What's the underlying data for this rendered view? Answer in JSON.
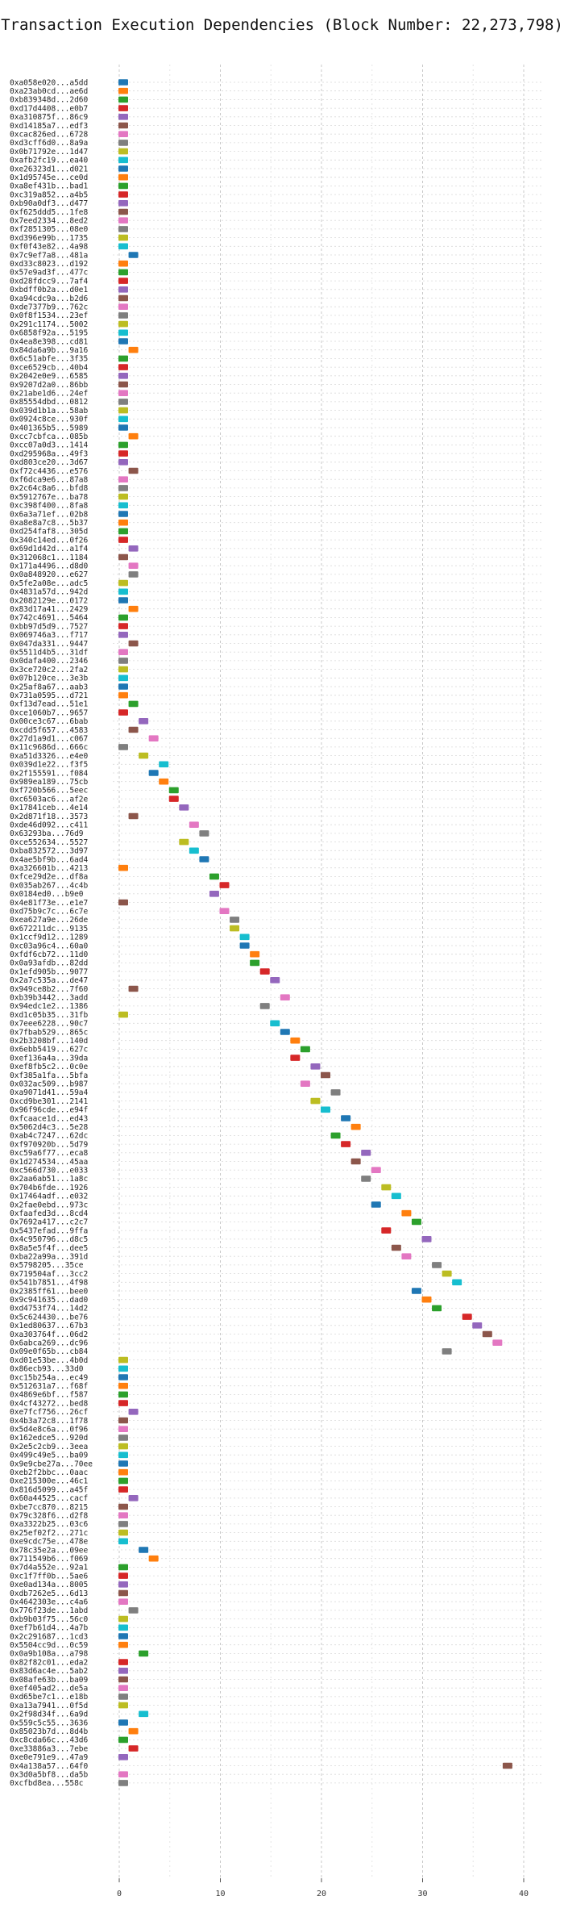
{
  "chart_data": {
    "type": "bar",
    "title": "Transaction Execution Dependencies (Block Number: 22,273,798)",
    "xlabel": "",
    "ylabel": "",
    "xlim": [
      -1,
      41
    ],
    "xticks": [
      0,
      10,
      20,
      30,
      40
    ],
    "grid": true,
    "orientation": "horizontal-gantt",
    "colors": [
      "#1f77b4",
      "#ff7f0e",
      "#2ca02c",
      "#d62728",
      "#9467bd",
      "#8c564b",
      "#e377c2",
      "#7f7f7f",
      "#bcbd22",
      "#17becf"
    ],
    "transactions": [
      {
        "label": "0xa058e020...a5dd",
        "start": 0
      },
      {
        "label": "0xa23ab0cd...ae6d",
        "start": 0
      },
      {
        "label": "0xb839348d...2d60",
        "start": 0
      },
      {
        "label": "0xd17d4408...e0b7",
        "start": 0
      },
      {
        "label": "0xa310875f...86c9",
        "start": 0
      },
      {
        "label": "0xd14185a7...edf3",
        "start": 0
      },
      {
        "label": "0xcac826ed...6728",
        "start": 0
      },
      {
        "label": "0xd3cff6d0...8a9a",
        "start": 0
      },
      {
        "label": "0x0b71792e...1d47",
        "start": 0
      },
      {
        "label": "0xafb2fc19...ea40",
        "start": 0
      },
      {
        "label": "0xe26323d1...d021",
        "start": 0
      },
      {
        "label": "0x1d95745e...ce0d",
        "start": 0
      },
      {
        "label": "0xa8ef431b...bad1",
        "start": 0
      },
      {
        "label": "0xc319a852...a4b5",
        "start": 0
      },
      {
        "label": "0xb90a0df3...d477",
        "start": 0
      },
      {
        "label": "0xf625ddd5...1fe8",
        "start": 0
      },
      {
        "label": "0x7eed2334...8ed2",
        "start": 0
      },
      {
        "label": "0xf2851305...08e0",
        "start": 0
      },
      {
        "label": "0xd396e99b...1735",
        "start": 0
      },
      {
        "label": "0xf0f43e82...4a98",
        "start": 0
      },
      {
        "label": "0x7c9ef7a8...481a",
        "start": 1
      },
      {
        "label": "0xd33c8023...d192",
        "start": 0
      },
      {
        "label": "0x57e9ad3f...477c",
        "start": 0
      },
      {
        "label": "0xd28fdcc9...7af4",
        "start": 0
      },
      {
        "label": "0xbdff0b2a...d0e1",
        "start": 0
      },
      {
        "label": "0xa94cdc9a...b2d6",
        "start": 0
      },
      {
        "label": "0xde7377b9...762c",
        "start": 0
      },
      {
        "label": "0x0f8f1534...23ef",
        "start": 0
      },
      {
        "label": "0x291c1174...5002",
        "start": 0
      },
      {
        "label": "0x6858f92a...5195",
        "start": 0
      },
      {
        "label": "0x4ea8e398...cd81",
        "start": 0
      },
      {
        "label": "0x84da6a9b...9a16",
        "start": 1
      },
      {
        "label": "0x6c51abfe...3f35",
        "start": 0
      },
      {
        "label": "0xce6529cb...40b4",
        "start": 0
      },
      {
        "label": "0x2042e0e9...6585",
        "start": 0
      },
      {
        "label": "0x9207d2a0...86bb",
        "start": 0
      },
      {
        "label": "0x21abe1d6...24ef",
        "start": 0
      },
      {
        "label": "0x85554dbd...0812",
        "start": 0
      },
      {
        "label": "0x039d1b1a...58ab",
        "start": 0
      },
      {
        "label": "0x0924c8ce...930f",
        "start": 0
      },
      {
        "label": "0x401365b5...5989",
        "start": 0
      },
      {
        "label": "0xcc7cbfca...085b",
        "start": 1
      },
      {
        "label": "0xcc07a0d3...1414",
        "start": 0
      },
      {
        "label": "0xd295968a...49f3",
        "start": 0
      },
      {
        "label": "0xd803ce20...3d67",
        "start": 0
      },
      {
        "label": "0xf72c4436...e576",
        "start": 1
      },
      {
        "label": "0xf6dca9e6...87a8",
        "start": 0
      },
      {
        "label": "0x2c64c8a6...bfd8",
        "start": 0
      },
      {
        "label": "0x5912767e...ba78",
        "start": 0
      },
      {
        "label": "0xc398f400...8fa8",
        "start": 0
      },
      {
        "label": "0x6a3a71ef...02b8",
        "start": 0
      },
      {
        "label": "0xa8e8a7c8...5b37",
        "start": 0
      },
      {
        "label": "0xd254faf8...305d",
        "start": 0
      },
      {
        "label": "0x340c14ed...0f26",
        "start": 0
      },
      {
        "label": "0x69d1d42d...a1f4",
        "start": 1
      },
      {
        "label": "0x312068c1...1184",
        "start": 0
      },
      {
        "label": "0x171a4496...d8d0",
        "start": 1
      },
      {
        "label": "0x0a848920...e627",
        "start": 1
      },
      {
        "label": "0x5fe2a08e...adc5",
        "start": 0
      },
      {
        "label": "0x4831a57d...942d",
        "start": 0
      },
      {
        "label": "0x2082129e...0172",
        "start": 0
      },
      {
        "label": "0x83d17a41...2429",
        "start": 1
      },
      {
        "label": "0x742c4691...5464",
        "start": 0
      },
      {
        "label": "0xbb97d5d9...7527",
        "start": 0
      },
      {
        "label": "0x069746a3...f717",
        "start": 0
      },
      {
        "label": "0x047da331...9447",
        "start": 1
      },
      {
        "label": "0x5511d4b5...31df",
        "start": 0
      },
      {
        "label": "0x0dafa400...2346",
        "start": 0
      },
      {
        "label": "0x3ce720c2...2fa2",
        "start": 0
      },
      {
        "label": "0x07b120ce...3e3b",
        "start": 0
      },
      {
        "label": "0x25af8a67...aab3",
        "start": 0
      },
      {
        "label": "0x731a0595...d721",
        "start": 0
      },
      {
        "label": "0xf13d7ead...51e1",
        "start": 1
      },
      {
        "label": "0xce1060b7...9657",
        "start": 0
      },
      {
        "label": "0x00ce3c67...6bab",
        "start": 2
      },
      {
        "label": "0xcdd5f657...4583",
        "start": 1
      },
      {
        "label": "0x27d1a9d1...c067",
        "start": 3
      },
      {
        "label": "0x11c9686d...666c",
        "start": 0
      },
      {
        "label": "0xa51d3326...e4e0",
        "start": 2
      },
      {
        "label": "0x039d1e22...f3f5",
        "start": 4
      },
      {
        "label": "0x2f155591...f084",
        "start": 3
      },
      {
        "label": "0x989ea189...75cb",
        "start": 4
      },
      {
        "label": "0xf720b566...5eec",
        "start": 5
      },
      {
        "label": "0xc6503ac6...af2e",
        "start": 5
      },
      {
        "label": "0x17841ceb...4e14",
        "start": 6
      },
      {
        "label": "0x2d871f18...3573",
        "start": 1
      },
      {
        "label": "0xde46d092...c411",
        "start": 7
      },
      {
        "label": "0x63293ba...76d9",
        "start": 8
      },
      {
        "label": "0xce552634...5527",
        "start": 6
      },
      {
        "label": "0xba832572...3d97",
        "start": 7
      },
      {
        "label": "0x4ae5bf9b...6ad4",
        "start": 8
      },
      {
        "label": "0xa326601b...4213",
        "start": 0
      },
      {
        "label": "0xfce29d2e...df8a",
        "start": 9
      },
      {
        "label": "0x035ab267...4c4b",
        "start": 10
      },
      {
        "label": "0x0184ed0...b9e0",
        "start": 9
      },
      {
        "label": "0x4e81f73e...e1e7",
        "start": 0
      },
      {
        "label": "0xd75b9c7c...6c7e",
        "start": 10
      },
      {
        "label": "0xea627a9e...26de",
        "start": 11
      },
      {
        "label": "0x672211dc...9135",
        "start": 11
      },
      {
        "label": "0x1ccf9d12...1289",
        "start": 12
      },
      {
        "label": "0xc03a96c4...60a0",
        "start": 12
      },
      {
        "label": "0xfdf6cb72...11d0",
        "start": 13
      },
      {
        "label": "0x0a93afdb...82dd",
        "start": 13
      },
      {
        "label": "0x1efd905b...9077",
        "start": 14
      },
      {
        "label": "0x2a7c535a...de47",
        "start": 15
      },
      {
        "label": "0x949ce8b2...7f60",
        "start": 1
      },
      {
        "label": "0xb39b3442...3add",
        "start": 16
      },
      {
        "label": "0x94edc1e2...1386",
        "start": 14
      },
      {
        "label": "0xd1c05b35...31fb",
        "start": 0
      },
      {
        "label": "0x7eee6228...90c7",
        "start": 15
      },
      {
        "label": "0x7fbab529...865c",
        "start": 16
      },
      {
        "label": "0x2b3208bf...140d",
        "start": 17
      },
      {
        "label": "0x6ebb5419...627c",
        "start": 18
      },
      {
        "label": "0xef136a4a...39da",
        "start": 17
      },
      {
        "label": "0xef8fb5c2...0c0e",
        "start": 19
      },
      {
        "label": "0xf385a1fa...5bfa",
        "start": 20
      },
      {
        "label": "0x032ac509...b987",
        "start": 18
      },
      {
        "label": "0xa9071d41...59a4",
        "start": 21
      },
      {
        "label": "0xcd9be301...2141",
        "start": 19
      },
      {
        "label": "0x96f96cde...e94f",
        "start": 20
      },
      {
        "label": "0xfcaace1d...ed43",
        "start": 22
      },
      {
        "label": "0x5062d4c3...5e28",
        "start": 23
      },
      {
        "label": "0xab4c7247...62dc",
        "start": 21
      },
      {
        "label": "0xf970920b...5d79",
        "start": 22
      },
      {
        "label": "0xc59a6f77...eca8",
        "start": 24
      },
      {
        "label": "0x1d274534...45aa",
        "start": 23
      },
      {
        "label": "0xc566d730...e033",
        "start": 25
      },
      {
        "label": "0x2aa6ab51...1a8c",
        "start": 24
      },
      {
        "label": "0x704b6fde...1926",
        "start": 26
      },
      {
        "label": "0x17464adf...e032",
        "start": 27
      },
      {
        "label": "0x2fae0ebd...973c",
        "start": 25
      },
      {
        "label": "0xfaafed3d...8cd4",
        "start": 28
      },
      {
        "label": "0x7692a417...c2c7",
        "start": 29
      },
      {
        "label": "0x5437efad...9ffa",
        "start": 26
      },
      {
        "label": "0x4c950796...d8c5",
        "start": 30
      },
      {
        "label": "0x8a5e5f4f...dee5",
        "start": 27
      },
      {
        "label": "0xba22a99a...391d",
        "start": 28
      },
      {
        "label": "0x5798205...35ce",
        "start": 31
      },
      {
        "label": "0x719504af...3cc2",
        "start": 32
      },
      {
        "label": "0x541b7851...4f98",
        "start": 33
      },
      {
        "label": "0x2385ff61...bee0",
        "start": 29
      },
      {
        "label": "0x9c941635...dad0",
        "start": 30
      },
      {
        "label": "0xd4753f74...14d2",
        "start": 31
      },
      {
        "label": "0x5c624430...be76",
        "start": 34
      },
      {
        "label": "0x1ed80637...67b3",
        "start": 35
      },
      {
        "label": "0xa303764f...06d2",
        "start": 36
      },
      {
        "label": "0x6abca269...dc96",
        "start": 37
      },
      {
        "label": "0x09e0f65b...cb84",
        "start": 32
      },
      {
        "label": "0xd01e53be...4b0d",
        "start": 0
      },
      {
        "label": "0x86ecb93...33d0",
        "start": 0
      },
      {
        "label": "0xc15b254a...ec49",
        "start": 0
      },
      {
        "label": "0x512631a7...f68f",
        "start": 0
      },
      {
        "label": "0x4869e6bf...f587",
        "start": 0
      },
      {
        "label": "0x4cf43272...bed8",
        "start": 0
      },
      {
        "label": "0xe7fcf756...26cf",
        "start": 1
      },
      {
        "label": "0x4b3a72c8...1f78",
        "start": 0
      },
      {
        "label": "0x5d4e8c6a...0f96",
        "start": 0
      },
      {
        "label": "0x162edce5...920d",
        "start": 0
      },
      {
        "label": "0x2e5c2cb9...3eea",
        "start": 0
      },
      {
        "label": "0x499c49e5...ba09",
        "start": 0
      },
      {
        "label": "0x9e9cbe27a...70ee",
        "start": 0
      },
      {
        "label": "0xeb2f2bbc...0aac",
        "start": 0
      },
      {
        "label": "0xe215300e...46c1",
        "start": 0
      },
      {
        "label": "0x816d5099...a45f",
        "start": 0
      },
      {
        "label": "0x60a44525...cacf",
        "start": 1
      },
      {
        "label": "0xbe7cc870...8215",
        "start": 0
      },
      {
        "label": "0x79c328f6...d2f8",
        "start": 0
      },
      {
        "label": "0xa3322b25...03c6",
        "start": 0
      },
      {
        "label": "0x25ef02f2...271c",
        "start": 0
      },
      {
        "label": "0xe9cdc75e...478e",
        "start": 0
      },
      {
        "label": "0x78c35e2a...09ee",
        "start": 2
      },
      {
        "label": "0x711549b6...f069",
        "start": 3
      },
      {
        "label": "0x7d4a552e...92a1",
        "start": 0
      },
      {
        "label": "0xc1f7ff0b...5ae6",
        "start": 0
      },
      {
        "label": "0xe0ad134a...8005",
        "start": 0
      },
      {
        "label": "0xdb7262e5...6d13",
        "start": 0
      },
      {
        "label": "0x4642303e...c4a6",
        "start": 0
      },
      {
        "label": "0x776f23de...1abd",
        "start": 1
      },
      {
        "label": "0xb9b03f75...56c0",
        "start": 0
      },
      {
        "label": "0xef7b61d4...4a7b",
        "start": 0
      },
      {
        "label": "0x2c291687...1cd3",
        "start": 0
      },
      {
        "label": "0x5504cc9d...0c59",
        "start": 0
      },
      {
        "label": "0x0a9b108a...a798",
        "start": 2
      },
      {
        "label": "0x82f82c01...eda2",
        "start": 0
      },
      {
        "label": "0x83d6ac4e...5ab2",
        "start": 0
      },
      {
        "label": "0x08afe63b...ba09",
        "start": 0
      },
      {
        "label": "0xef405ad2...de5a",
        "start": 0
      },
      {
        "label": "0xd65be7c1...e18b",
        "start": 0
      },
      {
        "label": "0xa13a7941...0f5d",
        "start": 0
      },
      {
        "label": "0x2f98d34f...6a9d",
        "start": 2
      },
      {
        "label": "0x559c5c55...3636",
        "start": 0
      },
      {
        "label": "0x85023b7d...8d4b",
        "start": 1
      },
      {
        "label": "0xc8cda66c...43d6",
        "start": 0
      },
      {
        "label": "0xe33886a3...7ebe",
        "start": 1
      },
      {
        "label": "0xe0e791e9...47a9",
        "start": 0
      },
      {
        "label": "0x4a138a57...64f0",
        "start": 38
      },
      {
        "label": "0x3d0a5bf8...da5b",
        "start": 0
      },
      {
        "label": "0xcfbd8ea...558c",
        "start": 0
      }
    ]
  }
}
